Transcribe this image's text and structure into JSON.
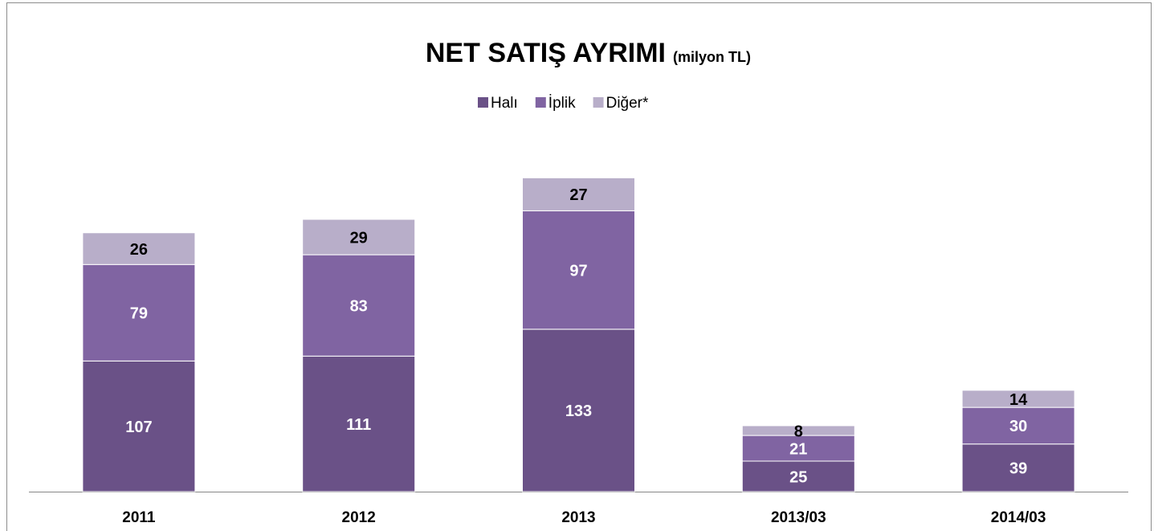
{
  "chart_data": {
    "type": "stacked_bar",
    "title": "NET SATIŞ AYRIMI",
    "subtitle": "(milyon TL)",
    "categories": [
      "2011",
      "2012",
      "2013",
      "2013/03",
      "2014/03"
    ],
    "series": [
      {
        "name": "Halı",
        "color": "#6a5187",
        "values": [
          107,
          111,
          133,
          25,
          39
        ]
      },
      {
        "name": "İplik",
        "color": "#8064a2",
        "values": [
          79,
          83,
          97,
          21,
          30
        ]
      },
      {
        "name": "Diğer*",
        "color": "#b8aec9",
        "values": [
          26,
          29,
          27,
          8,
          14
        ]
      }
    ],
    "ylim": [
      0,
      300
    ],
    "legend": "top"
  }
}
